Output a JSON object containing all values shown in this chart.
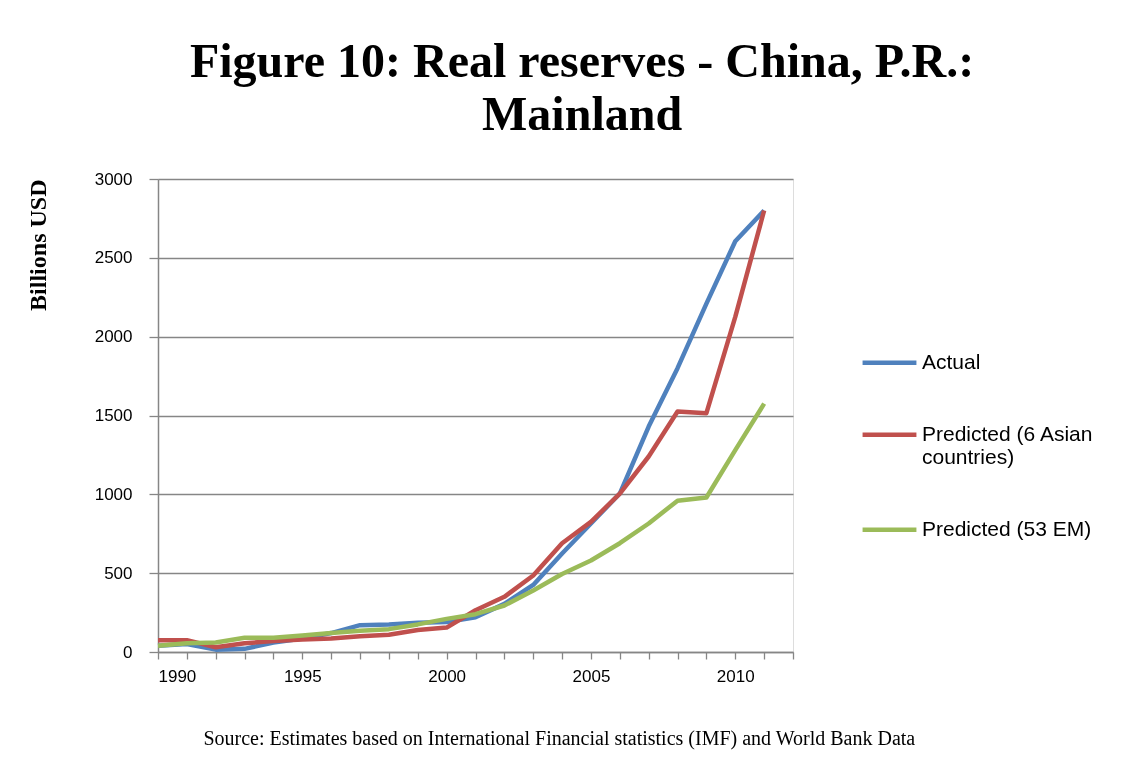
{
  "chart_data": {
    "type": "line",
    "title": "Figure 10: Real reserves - China, P.R.: Mainland",
    "ylabel": "Billions USD",
    "annotations": [
      "Source: Estimates based on International Financial statistics (IMF) and World Bank Data"
    ],
    "x": [
      1990,
      1991,
      1992,
      1993,
      1994,
      1995,
      1996,
      1997,
      1998,
      1999,
      2000,
      2001,
      2002,
      2003,
      2004,
      2005,
      2006,
      2007,
      2008,
      2009,
      2010,
      2011
    ],
    "xlim": [
      1990,
      2012
    ],
    "xticks": [
      1990,
      {
        "value": 1991,
        "label": null
      },
      {
        "value": 1992,
        "label": null
      },
      {
        "value": 1993,
        "label": null
      },
      {
        "value": 1994,
        "label": null
      },
      1995,
      {
        "value": 1996,
        "label": null
      },
      {
        "value": 1997,
        "label": null
      },
      {
        "value": 1998,
        "label": null
      },
      {
        "value": 1999,
        "label": null
      },
      2000,
      {
        "value": 2001,
        "label": null
      },
      {
        "value": 2002,
        "label": null
      },
      {
        "value": 2003,
        "label": null
      },
      {
        "value": 2004,
        "label": null
      },
      2005,
      {
        "value": 2006,
        "label": null
      },
      {
        "value": 2007,
        "label": null
      },
      {
        "value": 2008,
        "label": null
      },
      {
        "value": 2009,
        "label": null
      },
      2010,
      {
        "value": 2011,
        "label": null
      },
      {
        "value": 2012,
        "label": null
      }
    ],
    "ylim": [
      0,
      3000
    ],
    "yticks": [
      0,
      500,
      1000,
      1500,
      2000,
      2500,
      3000
    ],
    "grid": "y",
    "legend": "right",
    "line_style": "solid",
    "series": [
      {
        "name": "Actual",
        "color": "#4f81bd",
        "values": [
          40,
          50,
          15,
          20,
          60,
          85,
          120,
          170,
          175,
          185,
          190,
          220,
          305,
          425,
          625,
          815,
          1005,
          1430,
          1800,
          2210,
          2605,
          2800
        ]
      },
      {
        "name": "Predicted (6 Asian countries)",
        "color": "#c0504d",
        "values": [
          75,
          75,
          30,
          55,
          70,
          80,
          85,
          100,
          110,
          140,
          155,
          265,
          350,
          485,
          690,
          825,
          1005,
          1240,
          1525,
          1515,
          2125,
          2800
        ]
      },
      {
        "name": "Predicted (53 EM)",
        "color": "#9bbb59",
        "values": [
          40,
          55,
          60,
          90,
          90,
          105,
          120,
          135,
          145,
          175,
          210,
          240,
          295,
          390,
          495,
          580,
          690,
          815,
          960,
          980,
          1280,
          1575
        ]
      }
    ]
  }
}
